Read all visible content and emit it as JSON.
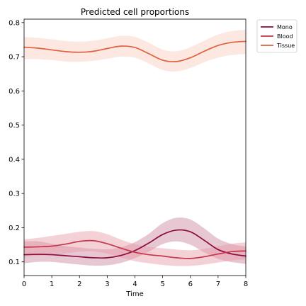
{
  "chart_data": {
    "type": "line",
    "title": "Predicted cell proportions",
    "xlabel": "Time",
    "ylabel": "",
    "xlim": [
      0,
      8
    ],
    "ylim": [
      0.06,
      0.81
    ],
    "xticks": [
      0,
      1,
      2,
      3,
      4,
      5,
      6,
      7,
      8
    ],
    "yticks": [
      0.1,
      0.2,
      0.3,
      0.4,
      0.5,
      0.6,
      0.7,
      0.8
    ],
    "grid": false,
    "legend_position": "outside-top-right",
    "series": [
      {
        "name": "Mono",
        "color": "#8b0a3f",
        "band_color": "#c9839c",
        "x": [
          0,
          0.5,
          1,
          1.5,
          2,
          2.5,
          3,
          3.5,
          4,
          4.5,
          5,
          5.5,
          6,
          6.5,
          7,
          7.5,
          8
        ],
        "y": [
          0.121,
          0.122,
          0.121,
          0.118,
          0.115,
          0.112,
          0.112,
          0.119,
          0.133,
          0.155,
          0.18,
          0.193,
          0.188,
          0.163,
          0.136,
          0.123,
          0.117
        ],
        "lower": [
          0.096,
          0.1,
          0.1,
          0.096,
          0.092,
          0.089,
          0.09,
          0.097,
          0.111,
          0.13,
          0.152,
          0.16,
          0.15,
          0.128,
          0.109,
          0.099,
          0.094
        ],
        "upper": [
          0.16,
          0.16,
          0.153,
          0.146,
          0.142,
          0.138,
          0.137,
          0.143,
          0.158,
          0.182,
          0.213,
          0.229,
          0.224,
          0.198,
          0.168,
          0.152,
          0.145
        ]
      },
      {
        "name": "Blood",
        "color": "#c5364a",
        "band_color": "#e79aa5",
        "x": [
          0,
          0.5,
          1,
          1.5,
          2,
          2.5,
          3,
          3.5,
          4,
          4.5,
          5,
          5.5,
          6,
          6.5,
          7,
          7.5,
          8
        ],
        "y": [
          0.143,
          0.144,
          0.146,
          0.152,
          0.16,
          0.162,
          0.153,
          0.14,
          0.128,
          0.121,
          0.117,
          0.112,
          0.11,
          0.115,
          0.123,
          0.13,
          0.132
        ],
        "lower": [
          0.115,
          0.118,
          0.12,
          0.125,
          0.13,
          0.131,
          0.124,
          0.113,
          0.102,
          0.096,
          0.091,
          0.088,
          0.088,
          0.092,
          0.098,
          0.104,
          0.107
        ],
        "upper": [
          0.166,
          0.17,
          0.176,
          0.182,
          0.188,
          0.19,
          0.181,
          0.165,
          0.152,
          0.144,
          0.14,
          0.136,
          0.134,
          0.138,
          0.146,
          0.153,
          0.157
        ]
      },
      {
        "name": "Tissue",
        "color": "#e1603e",
        "band_color": "#f8cbbd",
        "x": [
          0,
          0.5,
          1,
          1.5,
          2,
          2.5,
          3,
          3.5,
          4,
          4.5,
          5,
          5.5,
          6,
          6.5,
          7,
          7.5,
          8
        ],
        "y": [
          0.728,
          0.725,
          0.72,
          0.715,
          0.713,
          0.716,
          0.724,
          0.731,
          0.727,
          0.709,
          0.69,
          0.686,
          0.697,
          0.716,
          0.733,
          0.742,
          0.745
        ],
        "lower": [
          0.693,
          0.693,
          0.69,
          0.686,
          0.685,
          0.688,
          0.694,
          0.7,
          0.697,
          0.68,
          0.661,
          0.657,
          0.667,
          0.684,
          0.697,
          0.705,
          0.708
        ],
        "upper": [
          0.758,
          0.755,
          0.751,
          0.746,
          0.744,
          0.747,
          0.754,
          0.761,
          0.758,
          0.741,
          0.721,
          0.716,
          0.728,
          0.747,
          0.765,
          0.775,
          0.779
        ]
      }
    ]
  }
}
